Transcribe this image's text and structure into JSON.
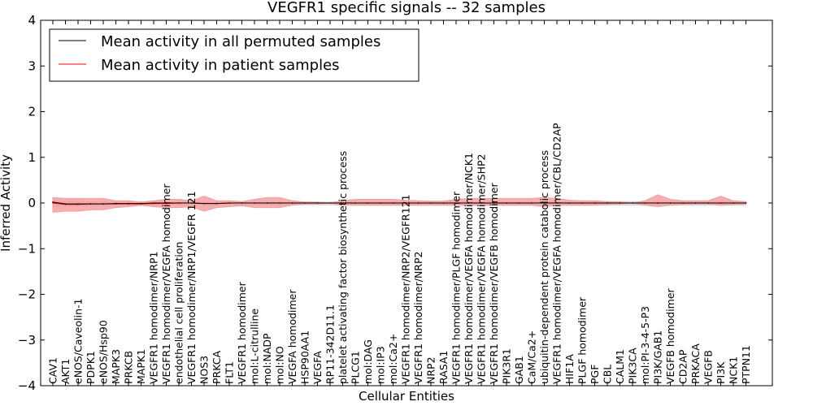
{
  "chart_data": {
    "type": "line",
    "title": "VEGFR1 specific signals -- 32 samples",
    "xlabel": "Cellular Entities",
    "ylabel": "Inferred Activity",
    "ylim": [
      -4,
      4
    ],
    "yticks": [
      -4,
      -3,
      -2,
      -1,
      0,
      1,
      2,
      3,
      4
    ],
    "ytick_labels": [
      "−4",
      "−3",
      "−2",
      "−1",
      "0",
      "1",
      "2",
      "3",
      "4"
    ],
    "grid": false,
    "legend_position": "top-left",
    "categories": [
      "CAV1",
      "AKT1",
      "eNOS/Caveolin-1",
      "PDPK1",
      "eNOS/Hsp90",
      "MAPK3",
      "PRKCB",
      "MAPK1",
      "VEGFR1 homodimer/NRP1",
      "VEGFR1 homodimer/VEGFA homodimer",
      "endothelial cell proliferation",
      "VEGFR1 homodimer/NRP1/VEGFR 121",
      "NOS3",
      "PRKCA",
      "FLT1",
      "VEGFR1 homodimer",
      "mol:L-citrulline",
      "mol:NADP",
      "mol:NO",
      "VEGFA homodimer",
      "HSP90AA1",
      "VEGFA",
      "RP11-342D11.1",
      "platelet activating factor biosynthetic process",
      "PLCG1",
      "mol:DAG",
      "mol:IP3",
      "mol:Ca2+",
      "VEGFR1 homodimer/NRP2/VEGFR121",
      "VEGFR1 homodimer/NRP2",
      "NRP2",
      "RASA1",
      "VEGFR1 homodimer/PLGF homodimer",
      "VEGFR1 homodimer/VEGFA homodimer/NCK1",
      "VEGFR1 homodimer/VEGFA homodimer/SHP2",
      "VEGFR1 homodimer/VEGFB homodimer",
      "PIK3R1",
      "GAB1",
      "CaM/Ca2+",
      "ubiquitin-dependent protein catabolic process",
      "VEGFR1 homodimer/VEGFA homodimer/CBL/CD2AP",
      "HIF1A",
      "PLGF homodimer",
      "PGF",
      "CBL",
      "CALM1",
      "PIK3CA",
      "mol:PI-3-4-5-P3",
      "PI3K/GAB1",
      "VEGFB homodimer",
      "CD2AP",
      "PRKACA",
      "VEGFB",
      "PI3K",
      "NCK1",
      "PTPN11"
    ],
    "series": [
      {
        "name": "Mean activity in all permuted samples",
        "color": "#000000",
        "band_color": "#d3d3d3",
        "values": [
          0.02,
          -0.02,
          -0.02,
          -0.02,
          -0.02,
          -0.01,
          -0.01,
          -0.01,
          0.0,
          0.0,
          0.0,
          0.0,
          -0.01,
          -0.01,
          0.0,
          0.0,
          0.0,
          0.0,
          0.0,
          0.0,
          0.0,
          0.0,
          0.0,
          0.0,
          0.0,
          0.0,
          0.0,
          0.0,
          0.0,
          0.0,
          0.0,
          0.0,
          0.0,
          0.0,
          0.0,
          0.0,
          0.0,
          0.0,
          0.0,
          0.0,
          0.0,
          0.0,
          0.0,
          0.0,
          0.0,
          0.0,
          0.0,
          0.0,
          0.0,
          0.0,
          0.0,
          0.0,
          0.0,
          0.0,
          0.0,
          0.0
        ],
        "band_upper": [
          0.06,
          0.04,
          0.04,
          0.03,
          0.03,
          0.03,
          0.03,
          0.03,
          0.02,
          0.02,
          0.02,
          0.02,
          0.02,
          0.02,
          0.02,
          0.02,
          0.02,
          0.02,
          0.02,
          0.02,
          0.02,
          0.02,
          0.02,
          0.03,
          0.03,
          0.03,
          0.03,
          0.03,
          0.03,
          0.03,
          0.03,
          0.03,
          0.03,
          0.03,
          0.03,
          0.03,
          0.03,
          0.03,
          0.03,
          0.03,
          0.03,
          0.03,
          0.03,
          0.03,
          0.03,
          0.03,
          0.03,
          0.03,
          0.03,
          0.03,
          0.03,
          0.03,
          0.03,
          0.03,
          0.03,
          0.03
        ],
        "band_lower": [
          -0.08,
          -0.08,
          -0.07,
          -0.06,
          -0.06,
          -0.05,
          -0.05,
          -0.05,
          -0.05,
          -0.05,
          -0.05,
          -0.05,
          -0.05,
          -0.05,
          -0.04,
          -0.04,
          -0.04,
          -0.04,
          -0.04,
          -0.04,
          -0.04,
          -0.04,
          -0.04,
          -0.05,
          -0.05,
          -0.05,
          -0.05,
          -0.05,
          -0.05,
          -0.05,
          -0.05,
          -0.05,
          -0.05,
          -0.05,
          -0.05,
          -0.05,
          -0.05,
          -0.05,
          -0.05,
          -0.05,
          -0.05,
          -0.05,
          -0.05,
          -0.05,
          -0.05,
          -0.05,
          -0.05,
          -0.05,
          -0.05,
          -0.05,
          -0.05,
          -0.05,
          -0.05,
          -0.05,
          -0.05,
          -0.05
        ]
      },
      {
        "name": "Mean activity in patient samples",
        "color": "#ff0000",
        "band_color": "#f4a0a0",
        "values": [
          0.0,
          -0.03,
          -0.03,
          -0.02,
          -0.02,
          -0.02,
          -0.02,
          -0.02,
          -0.01,
          -0.01,
          0.0,
          0.0,
          -0.01,
          -0.01,
          0.0,
          0.0,
          0.0,
          0.0,
          0.0,
          0.0,
          0.0,
          0.0,
          0.0,
          0.0,
          0.0,
          0.0,
          0.0,
          0.0,
          0.0,
          0.0,
          0.0,
          0.0,
          0.0,
          0.0,
          0.0,
          0.0,
          0.0,
          0.0,
          0.0,
          0.0,
          0.0,
          0.0,
          0.0,
          0.0,
          0.0,
          0.0,
          0.0,
          0.0,
          0.0,
          0.0,
          0.0,
          0.0,
          0.0,
          0.0,
          0.0,
          0.0
        ],
        "band_upper": [
          0.12,
          0.1,
          0.1,
          0.1,
          0.1,
          0.05,
          0.05,
          0.02,
          0.05,
          0.08,
          0.08,
          0.05,
          0.15,
          0.05,
          0.05,
          0.03,
          0.08,
          0.12,
          0.12,
          0.05,
          0.02,
          0.02,
          0.0,
          0.05,
          0.08,
          0.08,
          0.08,
          0.08,
          0.06,
          0.05,
          0.04,
          0.04,
          0.08,
          0.1,
          0.1,
          0.1,
          0.1,
          0.1,
          0.1,
          0.12,
          0.1,
          0.06,
          0.05,
          0.05,
          0.03,
          0.02,
          0.0,
          0.05,
          0.18,
          0.08,
          0.05,
          0.05,
          0.05,
          0.15,
          0.05,
          0.03
        ],
        "band_lower": [
          -0.2,
          -0.18,
          -0.18,
          -0.15,
          -0.15,
          -0.1,
          -0.08,
          -0.05,
          -0.08,
          -0.1,
          -0.1,
          -0.08,
          -0.18,
          -0.1,
          -0.08,
          -0.06,
          -0.1,
          -0.1,
          -0.1,
          -0.05,
          -0.02,
          -0.02,
          0.0,
          -0.05,
          -0.05,
          -0.05,
          -0.05,
          -0.05,
          -0.05,
          -0.05,
          -0.05,
          -0.05,
          -0.05,
          -0.05,
          -0.05,
          -0.05,
          -0.05,
          -0.05,
          -0.05,
          -0.08,
          -0.05,
          -0.05,
          -0.05,
          -0.05,
          -0.03,
          -0.02,
          0.0,
          -0.05,
          -0.08,
          -0.05,
          -0.03,
          -0.02,
          -0.02,
          -0.05,
          -0.03,
          -0.02
        ]
      }
    ]
  }
}
